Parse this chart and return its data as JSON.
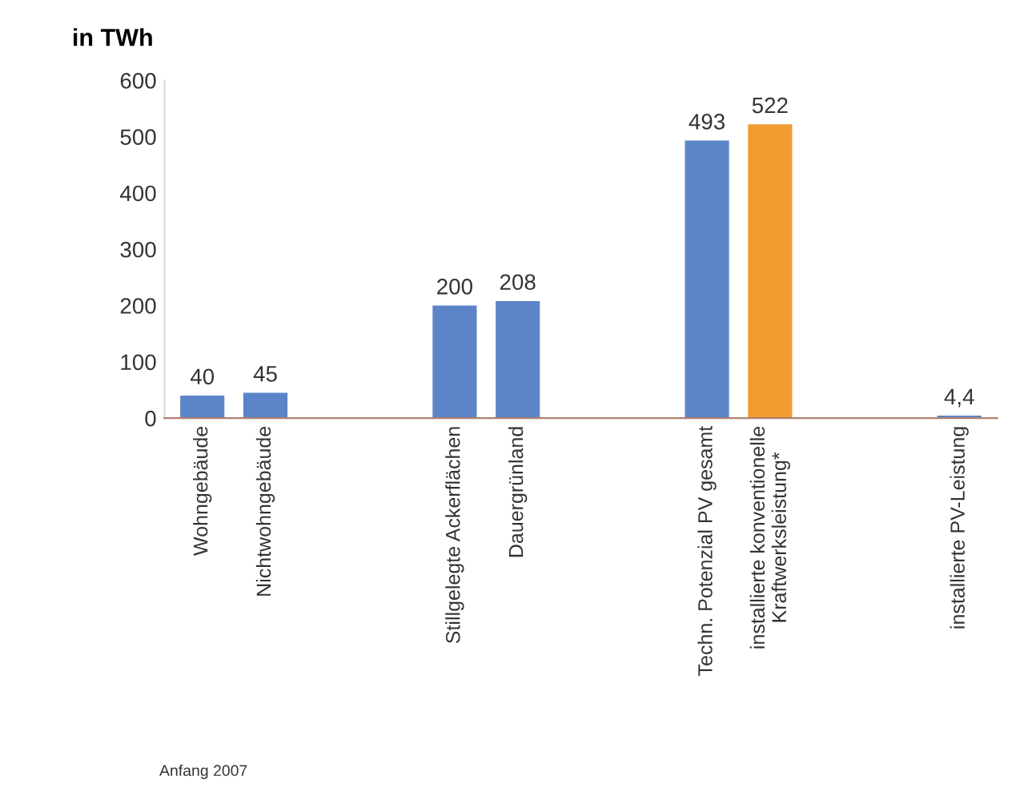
{
  "chart_data": {
    "type": "bar",
    "ylabel": "in TWh",
    "categories": [
      "Wohngebäude",
      "Nichtwohngebäude",
      null,
      null,
      "Stillgelegte Ackerflächen",
      "Dauergrünland",
      null,
      null,
      "Techn. Potenzial PV gesamt",
      "installierte konventionelle\nKraftwerksleistung*",
      null,
      null,
      "installierte PV-Leistung"
    ],
    "values": [
      40,
      45,
      null,
      null,
      200,
      208,
      null,
      null,
      493,
      522,
      null,
      null,
      4.4
    ],
    "colors": [
      "#5b85c8",
      "#5b85c8",
      null,
      null,
      "#5b85c8",
      "#5b85c8",
      null,
      null,
      "#5b85c8",
      "#f39a30",
      null,
      null,
      "#5b85c8"
    ],
    "value_labels": [
      "40",
      "45",
      null,
      null,
      "200",
      "208",
      null,
      null,
      "493",
      "522",
      null,
      null,
      "4,4"
    ],
    "ylim": [
      0,
      600
    ],
    "yticks": [
      0,
      100,
      200,
      300,
      400,
      500,
      600
    ],
    "grid": false,
    "annotations": [
      "Anfang 2007"
    ]
  }
}
